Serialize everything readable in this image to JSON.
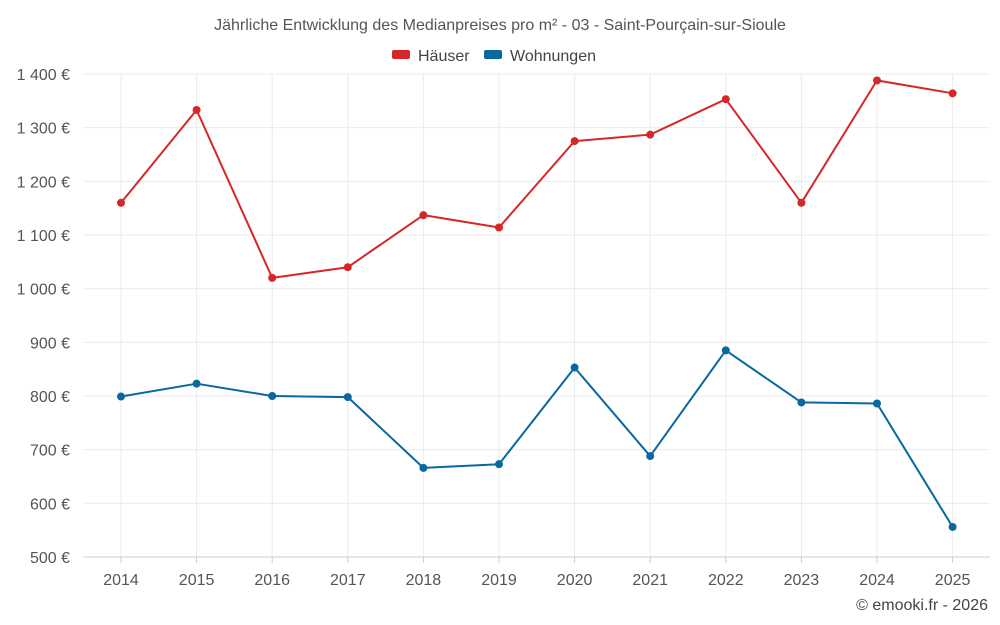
{
  "chart_data": {
    "type": "line",
    "title": "Jährliche Entwicklung des Medianpreises pro m² - 03 - Saint-Pourçain-sur-Sioule",
    "categories": [
      "2014",
      "2015",
      "2016",
      "2017",
      "2018",
      "2019",
      "2020",
      "2021",
      "2022",
      "2023",
      "2024",
      "2025"
    ],
    "series": [
      {
        "name": "Häuser",
        "color": "#d62728",
        "values": [
          1160,
          1333,
          1020,
          1040,
          1137,
          1114,
          1275,
          1287,
          1353,
          1160,
          1388,
          1364
        ]
      },
      {
        "name": "Wohnungen",
        "color": "#0868a0",
        "values": [
          799,
          823,
          800,
          798,
          666,
          673,
          853,
          688,
          885,
          788,
          786,
          556
        ]
      }
    ],
    "ylim": [
      500,
      1400
    ],
    "yticks": [
      500,
      600,
      700,
      800,
      900,
      1000,
      1100,
      1200,
      1300,
      1400
    ],
    "ytick_labels": [
      "500 €",
      "600 €",
      "700 €",
      "800 €",
      "900 €",
      "1 000 €",
      "1 100 €",
      "1 200 €",
      "1 300 €",
      "1 400 €"
    ],
    "xlabel": "",
    "ylabel": "",
    "grid": true,
    "legend_position": "top-center"
  },
  "credit": "© emooki.fr - 2026"
}
